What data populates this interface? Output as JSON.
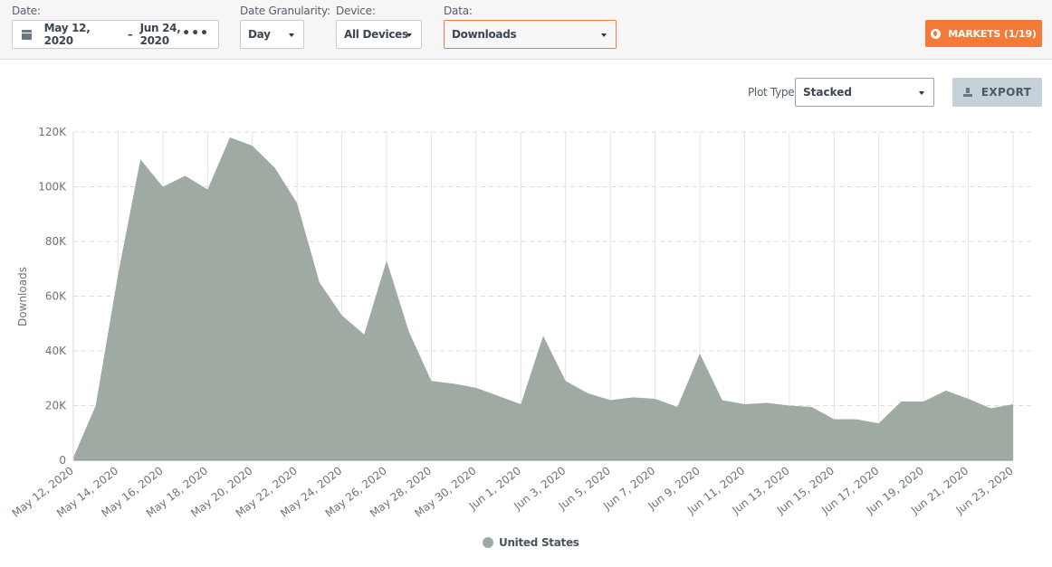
{
  "filters": {
    "date_label": "Date:",
    "date_start": "May 12, 2020",
    "date_sep": "–",
    "date_end": "Jun 24, 2020",
    "date_more": "•••",
    "granularity_label": "Date Granularity:",
    "granularity_value": "Day",
    "device_label": "Device:",
    "device_value": "All Devices",
    "data_label": "Data:",
    "data_value": "Downloads",
    "markets_label": "MARKETS (1/19)"
  },
  "toolbar": {
    "plot_type_label": "Plot Type:",
    "plot_type_value": "Stacked",
    "export_label": "EXPORT"
  },
  "colors": {
    "accent": "#f47b37",
    "series": "#9eaaa2"
  },
  "chart_data": {
    "type": "area",
    "ylabel": "Downloads",
    "ylim": [
      0,
      120000
    ],
    "yticks": [
      "0",
      "20K",
      "40K",
      "60K",
      "80K",
      "100K",
      "120K"
    ],
    "xtick_labels": [
      "May 12, 2020",
      "May 14, 2020",
      "May 16, 2020",
      "May 18, 2020",
      "May 20, 2020",
      "May 22, 2020",
      "May 24, 2020",
      "May 26, 2020",
      "May 28, 2020",
      "May 30, 2020",
      "Jun 1, 2020",
      "Jun 3, 2020",
      "Jun 5, 2020",
      "Jun 7, 2020",
      "Jun 9, 2020",
      "Jun 11, 2020",
      "Jun 13, 2020",
      "Jun 15, 2020",
      "Jun 17, 2020",
      "Jun 19, 2020",
      "Jun 21, 2020",
      "Jun 23, 2020"
    ],
    "x": [
      "May 12, 2020",
      "May 13, 2020",
      "May 14, 2020",
      "May 15, 2020",
      "May 16, 2020",
      "May 17, 2020",
      "May 18, 2020",
      "May 19, 2020",
      "May 20, 2020",
      "May 21, 2020",
      "May 22, 2020",
      "May 23, 2020",
      "May 24, 2020",
      "May 25, 2020",
      "May 26, 2020",
      "May 27, 2020",
      "May 28, 2020",
      "May 29, 2020",
      "May 30, 2020",
      "May 31, 2020",
      "Jun 1, 2020",
      "Jun 2, 2020",
      "Jun 3, 2020",
      "Jun 4, 2020",
      "Jun 5, 2020",
      "Jun 6, 2020",
      "Jun 7, 2020",
      "Jun 8, 2020",
      "Jun 9, 2020",
      "Jun 10, 2020",
      "Jun 11, 2020",
      "Jun 12, 2020",
      "Jun 13, 2020",
      "Jun 14, 2020",
      "Jun 15, 2020",
      "Jun 16, 2020",
      "Jun 17, 2020",
      "Jun 18, 2020",
      "Jun 19, 2020",
      "Jun 20, 2020",
      "Jun 21, 2020",
      "Jun 22, 2020",
      "Jun 23, 2020"
    ],
    "series": [
      {
        "name": "United States",
        "values": [
          1000,
          20000,
          68000,
          110000,
          100000,
          104000,
          99000,
          118000,
          115000,
          107000,
          94000,
          65000,
          53000,
          46000,
          73000,
          47000,
          29000,
          28000,
          26500,
          23500,
          20500,
          45500,
          29000,
          24500,
          22000,
          23000,
          22500,
          19500,
          39000,
          22000,
          20500,
          21000,
          20000,
          19500,
          15000,
          15000,
          13500,
          21500,
          21500,
          25500,
          22500,
          19000,
          20500
        ]
      }
    ],
    "grid": true,
    "legend": "bottom-center"
  }
}
